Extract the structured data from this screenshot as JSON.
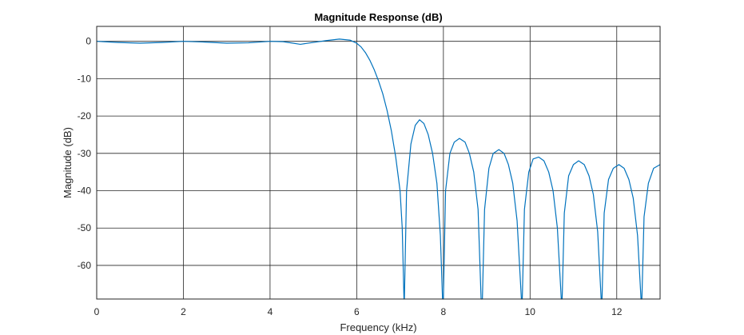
{
  "chart_data": {
    "type": "line",
    "title": "Magnitude Response (dB)",
    "xlabel": "Frequency (kHz)",
    "ylabel": "Magnitude (dB)",
    "xlim": [
      0,
      13
    ],
    "ylim": [
      -69,
      4
    ],
    "xticks": [
      0,
      2,
      4,
      6,
      8,
      10,
      12
    ],
    "yticks": [
      0,
      -10,
      -20,
      -30,
      -40,
      -50,
      -60
    ],
    "xtick_labels": [
      "0",
      "2",
      "4",
      "6",
      "8",
      "10",
      "12"
    ],
    "ytick_labels": [
      "0",
      "-10",
      "-20",
      "-30",
      "-40",
      "-50",
      "-60"
    ],
    "grid": true,
    "series": [
      {
        "color": "#0072BD",
        "x": [
          0,
          0.5,
          1.0,
          1.5,
          2.0,
          2.5,
          3.0,
          3.5,
          4.0,
          4.3,
          4.7,
          5.0,
          5.3,
          5.6,
          5.85,
          6.0,
          6.1,
          6.2,
          6.3,
          6.4,
          6.5,
          6.6,
          6.7,
          6.8,
          6.9,
          7.0,
          7.05,
          7.09,
          7.1,
          7.15,
          7.25,
          7.35,
          7.45,
          7.55,
          7.65,
          7.75,
          7.85,
          7.93,
          7.98,
          8.0,
          8.05,
          8.15,
          8.25,
          8.37,
          8.5,
          8.6,
          8.7,
          8.8,
          8.87,
          8.9,
          8.95,
          9.05,
          9.15,
          9.28,
          9.4,
          9.5,
          9.6,
          9.7,
          9.8,
          9.82,
          9.87,
          9.97,
          10.07,
          10.2,
          10.32,
          10.43,
          10.53,
          10.63,
          10.72,
          10.74,
          10.79,
          10.89,
          11.0,
          11.12,
          11.25,
          11.36,
          11.46,
          11.56,
          11.64,
          11.66,
          11.71,
          11.81,
          11.92,
          12.05,
          12.17,
          12.28,
          12.38,
          12.48,
          12.56,
          12.58,
          12.63,
          12.73,
          12.85,
          13.0
        ],
        "y": [
          0,
          -0.3,
          -0.5,
          -0.3,
          0,
          -0.2,
          -0.5,
          -0.4,
          0,
          -0.1,
          -0.8,
          -0.3,
          0.2,
          0.6,
          0.3,
          -0.5,
          -1.5,
          -3.0,
          -5.0,
          -7.5,
          -10.5,
          -14.0,
          -18.5,
          -24.0,
          -31.0,
          -40.0,
          -50.0,
          -69,
          -69,
          -40.0,
          -27.5,
          -22.5,
          -21.0,
          -22.0,
          -25.0,
          -30.0,
          -38.0,
          -52.0,
          -69,
          -69,
          -40.0,
          -30.0,
          -27.0,
          -26.0,
          -27.0,
          -30.0,
          -35.0,
          -45.0,
          -69,
          -69,
          -45.0,
          -34.0,
          -30.0,
          -29.0,
          -30.0,
          -33.0,
          -38.0,
          -48.0,
          -69,
          -69,
          -45.0,
          -35.0,
          -31.5,
          -31.0,
          -32.0,
          -35.0,
          -40.0,
          -50.0,
          -69,
          -69,
          -46.0,
          -36.0,
          -33.0,
          -32.0,
          -33.0,
          -36.0,
          -41.0,
          -51.0,
          -69,
          -69,
          -46.0,
          -37.0,
          -34.0,
          -33.0,
          -34.0,
          -37.0,
          -42.0,
          -52.0,
          -69,
          -69,
          -47.0,
          -38.0,
          -34.0,
          -33.0
        ]
      }
    ]
  }
}
